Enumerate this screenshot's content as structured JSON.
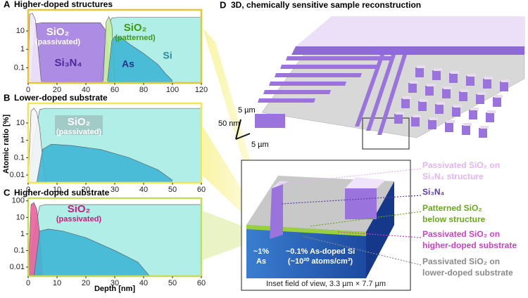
{
  "chart_data": [
    {
      "type": "area",
      "panel": "A",
      "title": "Higher-doped structures",
      "ylog": true,
      "xlim": [
        0,
        120
      ],
      "xticks": [
        0,
        20,
        40,
        60,
        80,
        100,
        120
      ],
      "ylim": [
        0.015,
        140
      ],
      "yticks": [
        0.1,
        1,
        10
      ],
      "frame_color": "#e8c43a",
      "series": [
        {
          "name": "Si",
          "color": "#a9ece6",
          "x": [
            50,
            55,
            58,
            62,
            70,
            80,
            100,
            120
          ],
          "values": [
            0.02,
            20,
            50,
            55,
            55,
            55,
            55,
            55
          ]
        },
        {
          "name": "Si₃N₄",
          "color": "#a47fe0",
          "x": [
            2,
            5,
            10,
            50,
            54,
            57
          ],
          "values": [
            0.02,
            25,
            28,
            28,
            10,
            0.02
          ]
        },
        {
          "name": "SiO₂",
          "annotation": "(passivated)",
          "color": "#efe6f8",
          "x": [
            0,
            1,
            3,
            5,
            7,
            9
          ],
          "values": [
            0.02,
            80,
            90,
            40,
            1,
            0.02
          ]
        },
        {
          "name": "SiO₂",
          "annotation": "(patterned)",
          "color": "#c9efa0",
          "x": [
            52,
            54,
            56,
            58,
            60
          ],
          "values": [
            0.02,
            30,
            60,
            20,
            0.02
          ]
        },
        {
          "name": "As",
          "color": "#3fb6d6",
          "x": [
            55,
            58,
            60,
            65,
            70,
            80,
            90,
            95,
            100
          ],
          "values": [
            0.02,
            3,
            5,
            4,
            2,
            0.6,
            0.15,
            0.05,
            0.02
          ]
        }
      ]
    },
    {
      "type": "area",
      "panel": "B",
      "title": "Lower-doped substrate",
      "ylog": true,
      "ylabel": "Atomic ratio [%]",
      "xlim": [
        0,
        60
      ],
      "xticks": [
        0,
        10,
        20,
        30,
        40,
        50,
        60
      ],
      "ylim": [
        0.0036,
        136
      ],
      "yticks": [
        0.01,
        0.1,
        1,
        10
      ],
      "frame_color": "#efe65a",
      "series": [
        {
          "color": "#a9ece6",
          "x": [
            0,
            2,
            4,
            6,
            60
          ],
          "values": [
            0.004,
            1,
            60,
            70,
            70
          ]
        },
        {
          "name": "SiO₂",
          "annotation": "(passivated)",
          "color": "#f4f4f4",
          "x": [
            0,
            1,
            2,
            3,
            4,
            5,
            6
          ],
          "values": [
            0.004,
            50,
            70,
            40,
            5,
            0.1,
            0.004
          ]
        },
        {
          "color": "#3fb6d6",
          "x": [
            3,
            5,
            8,
            15,
            25,
            35,
            45,
            50
          ],
          "values": [
            0.004,
            0.3,
            0.6,
            0.5,
            0.3,
            0.1,
            0.02,
            0.005
          ]
        }
      ]
    },
    {
      "type": "area",
      "panel": "C",
      "title": "Higher-doped substrate",
      "ylog": true,
      "xlabel": "Depth [nm]",
      "xlim": [
        0,
        60
      ],
      "xticks": [
        0,
        10,
        20,
        30,
        40,
        50,
        60
      ],
      "ylim": [
        0.0028,
        145
      ],
      "yticks": [
        0.01,
        0.1,
        1,
        10,
        100
      ],
      "frame_color": "#c4dc5a",
      "series": [
        {
          "color": "#a9ece6",
          "x": [
            0,
            2,
            4,
            6,
            60
          ],
          "values": [
            0.003,
            1,
            50,
            60,
            60
          ]
        },
        {
          "name": "SiO₂",
          "annotation": "(passivated)",
          "color": "#e8609c",
          "x": [
            0,
            1,
            2,
            3,
            4,
            5
          ],
          "values": [
            0.003,
            60,
            80,
            30,
            1,
            0.003
          ]
        },
        {
          "color": "#3fb6d6",
          "x": [
            2,
            4,
            7,
            12,
            20,
            30,
            38,
            42
          ],
          "values": [
            0.003,
            1.5,
            2,
            1.5,
            0.6,
            0.1,
            0.02,
            0.003
          ]
        }
      ]
    }
  ],
  "panel_d": {
    "panel": "D",
    "title": "3D, chemically sensitive sample reconstruction",
    "scale_labels": [
      "5 µm",
      "50 nm",
      "5 µm"
    ],
    "legend": [
      {
        "lines": [
          "Passivated SiO₂ on",
          "Si₃N₄ structure"
        ],
        "color": "#e4b4f4"
      },
      {
        "lines": [
          "Si₃N₄"
        ],
        "color": "#5a3aa8"
      },
      {
        "lines": [
          "Patterned SiO₂",
          "below structure"
        ],
        "color": "#6aa820"
      },
      {
        "lines": [
          "Passivated SiO₂ on",
          "higher-doped substrate"
        ],
        "color": "#d040c8"
      },
      {
        "lines": [
          "Passivated SiO₂ on",
          "lower-doped substrate"
        ],
        "color": "#8a8a8a"
      }
    ],
    "inset_labels": [
      [
        "~1%",
        "As"
      ],
      [
        "~0.1% As-doped Si",
        "(~10²⁰ atoms/cm³)"
      ]
    ],
    "caption": "Inset field of view, 3.3 µm × 7.7 µm"
  }
}
